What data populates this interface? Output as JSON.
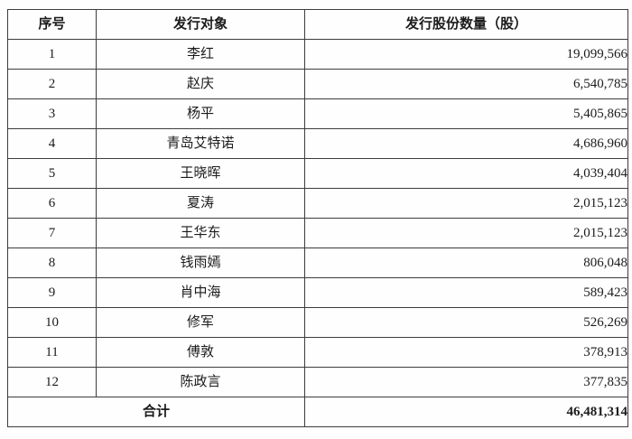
{
  "table": {
    "headers": [
      "序号",
      "发行对象",
      "发行股份数量（股）"
    ],
    "rows": [
      {
        "no": "1",
        "name": "李红",
        "shares": "19,099,566"
      },
      {
        "no": "2",
        "name": "赵庆",
        "shares": "6,540,785"
      },
      {
        "no": "3",
        "name": "杨平",
        "shares": "5,405,865"
      },
      {
        "no": "4",
        "name": "青岛艾特诺",
        "shares": "4,686,960"
      },
      {
        "no": "5",
        "name": "王晓晖",
        "shares": "4,039,404"
      },
      {
        "no": "6",
        "name": "夏涛",
        "shares": "2,015,123"
      },
      {
        "no": "7",
        "name": "王华东",
        "shares": "2,015,123"
      },
      {
        "no": "8",
        "name": "钱雨嫣",
        "shares": "806,048"
      },
      {
        "no": "9",
        "name": "肖中海",
        "shares": "589,423"
      },
      {
        "no": "10",
        "name": "修军",
        "shares": "526,269"
      },
      {
        "no": "11",
        "name": "傅敦",
        "shares": "378,913"
      },
      {
        "no": "12",
        "name": "陈政言",
        "shares": "377,835"
      }
    ],
    "total": {
      "label": "合计",
      "shares": "46,481,314"
    }
  },
  "colors": {
    "border": "#3d3d3d",
    "text": "#1b1b1b",
    "background": "#fefefe"
  }
}
